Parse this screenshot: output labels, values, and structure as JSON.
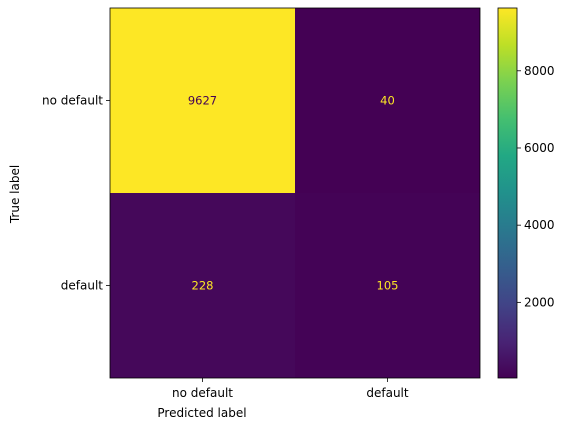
{
  "chart_data": {
    "type": "heatmap",
    "xlabel": "Predicted label",
    "ylabel": "True label",
    "x_categories": [
      "no default",
      "default"
    ],
    "y_categories": [
      "no default",
      "default"
    ],
    "matrix": [
      [
        9627,
        40
      ],
      [
        228,
        105
      ]
    ],
    "colormap": "viridis",
    "colorbar": {
      "min": 40,
      "max": 9627,
      "ticks": [
        2000,
        4000,
        6000,
        8000
      ],
      "tick_labels": [
        "2000",
        "4000",
        "6000",
        "8000"
      ]
    },
    "low_color": "#440154",
    "high_color": "#fde725",
    "text_color_on_dark": "#fde725",
    "text_color_on_light": "#440154"
  }
}
